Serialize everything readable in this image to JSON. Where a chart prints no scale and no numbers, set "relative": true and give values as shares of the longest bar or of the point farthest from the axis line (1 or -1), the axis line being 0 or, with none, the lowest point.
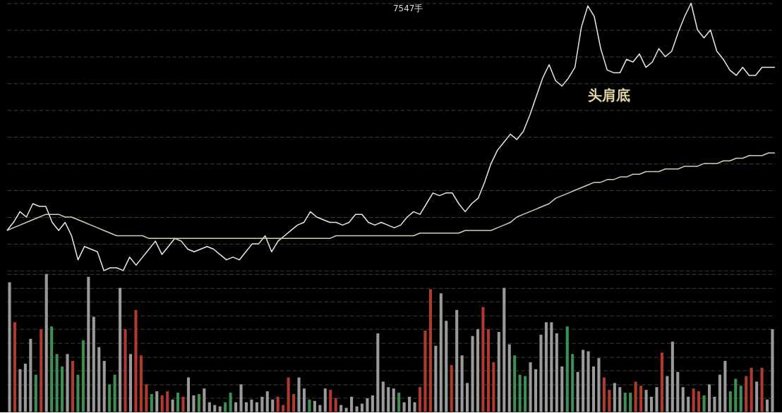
{
  "chart_data": [
    {
      "type": "line",
      "relative": true,
      "grid": "y",
      "categories": [
        null,
        null,
        null,
        null,
        null,
        null,
        null,
        null,
        null,
        null,
        null,
        null,
        null,
        null,
        null,
        null,
        null,
        null,
        null,
        null,
        null,
        null,
        null,
        null,
        null,
        null,
        null,
        null,
        null,
        null,
        null,
        null,
        null,
        null,
        null,
        null,
        null,
        null,
        null,
        null,
        null,
        null,
        null,
        null,
        null,
        null,
        null,
        null,
        null,
        null,
        null,
        null,
        null,
        null,
        null,
        null,
        null,
        null,
        null,
        null,
        null,
        null,
        null,
        null,
        null,
        null,
        null,
        null,
        null,
        null,
        null,
        null,
        null,
        null,
        null,
        null,
        null,
        null,
        null,
        null,
        null,
        null,
        null,
        null,
        null,
        null,
        null,
        null,
        null,
        null,
        null,
        null,
        null,
        null,
        null,
        null,
        null,
        null,
        null,
        null,
        null,
        null,
        null,
        null,
        null,
        null,
        null,
        null,
        null,
        null,
        null,
        null,
        null,
        null,
        null,
        null,
        null,
        null,
        null,
        null
      ],
      "annotations": [
        "7547手",
        "头肩底"
      ],
      "series": [
        {
          "color": "#e8e8e8",
          "values": [
            0.15,
            0.18,
            0.22,
            0.2,
            0.25,
            0.24,
            0.24,
            0.18,
            0.15,
            0.18,
            0.13,
            0.04,
            0.09,
            0.08,
            0.07,
            0.0,
            0.01,
            0.01,
            0.0,
            0.05,
            0.02,
            0.05,
            0.08,
            0.11,
            0.06,
            0.09,
            0.12,
            0.11,
            0.08,
            0.07,
            0.08,
            0.09,
            0.08,
            0.06,
            0.04,
            0.05,
            0.04,
            0.07,
            0.1,
            0.1,
            0.13,
            0.07,
            0.11,
            0.13,
            0.15,
            0.17,
            0.18,
            0.22,
            0.2,
            0.19,
            0.18,
            0.18,
            0.17,
            0.18,
            0.21,
            0.21,
            0.18,
            0.17,
            0.18,
            0.17,
            0.16,
            0.17,
            0.2,
            0.22,
            0.21,
            0.25,
            0.29,
            0.28,
            0.29,
            0.29,
            0.25,
            0.22,
            0.25,
            0.27,
            0.33,
            0.4,
            0.45,
            0.48,
            0.51,
            0.49,
            0.52,
            0.58,
            0.65,
            0.72,
            0.77,
            0.71,
            0.69,
            0.72,
            0.76,
            0.91,
            0.99,
            0.95,
            0.83,
            0.75,
            0.74,
            0.74,
            0.79,
            0.78,
            0.81,
            0.76,
            0.78,
            0.83,
            0.8,
            0.82,
            0.89,
            0.95,
            1.0,
            0.9,
            0.87,
            0.9,
            0.82,
            0.79,
            0.75,
            0.73,
            0.76,
            0.73,
            0.73,
            0.76,
            0.76,
            0.76
          ]
        },
        {
          "color": "#d9cdb8",
          "values": [
            0.15,
            0.16,
            0.17,
            0.18,
            0.19,
            0.2,
            0.21,
            0.21,
            0.21,
            0.2,
            0.2,
            0.19,
            0.18,
            0.17,
            0.16,
            0.15,
            0.14,
            0.13,
            0.13,
            0.13,
            0.13,
            0.13,
            0.12,
            0.12,
            0.12,
            0.12,
            0.12,
            0.12,
            0.12,
            0.12,
            0.12,
            0.12,
            0.12,
            0.12,
            0.12,
            0.12,
            0.12,
            0.12,
            0.12,
            0.12,
            0.12,
            0.12,
            0.12,
            0.12,
            0.12,
            0.12,
            0.12,
            0.12,
            0.12,
            0.12,
            0.12,
            0.13,
            0.13,
            0.13,
            0.13,
            0.13,
            0.13,
            0.13,
            0.13,
            0.13,
            0.13,
            0.13,
            0.13,
            0.13,
            0.14,
            0.14,
            0.14,
            0.14,
            0.14,
            0.14,
            0.14,
            0.15,
            0.15,
            0.15,
            0.15,
            0.15,
            0.16,
            0.17,
            0.18,
            0.2,
            0.21,
            0.22,
            0.23,
            0.24,
            0.25,
            0.27,
            0.28,
            0.29,
            0.3,
            0.31,
            0.32,
            0.33,
            0.33,
            0.34,
            0.34,
            0.35,
            0.35,
            0.36,
            0.36,
            0.37,
            0.37,
            0.37,
            0.38,
            0.38,
            0.38,
            0.39,
            0.39,
            0.39,
            0.4,
            0.4,
            0.4,
            0.41,
            0.41,
            0.42,
            0.42,
            0.43,
            0.43,
            0.43,
            0.44,
            0.44
          ]
        }
      ]
    },
    {
      "type": "bar",
      "relative": true,
      "grid": "y",
      "categories": [
        null,
        null,
        null,
        null,
        null,
        null,
        null,
        null,
        null,
        null,
        null,
        null,
        null,
        null,
        null,
        null,
        null,
        null,
        null,
        null,
        null,
        null,
        null,
        null,
        null,
        null,
        null,
        null,
        null,
        null,
        null,
        null,
        null,
        null,
        null,
        null,
        null,
        null,
        null,
        null,
        null,
        null,
        null,
        null,
        null,
        null,
        null,
        null,
        null,
        null,
        null,
        null,
        null,
        null,
        null,
        null,
        null,
        null,
        null,
        null,
        null,
        null,
        null,
        null,
        null,
        null,
        null,
        null,
        null,
        null,
        null,
        null,
        null,
        null,
        null,
        null,
        null,
        null,
        null,
        null,
        null,
        null,
        null,
        null,
        null,
        null,
        null,
        null,
        null,
        null,
        null,
        null,
        null,
        null,
        null,
        null,
        null,
        null,
        null,
        null,
        null,
        null,
        null,
        null,
        null,
        null,
        null,
        null,
        null,
        null,
        null,
        null,
        null,
        null,
        null,
        null,
        null,
        null,
        null,
        null,
        null,
        null,
        null,
        null,
        null,
        null,
        null,
        null,
        null,
        null,
        null,
        null,
        null,
        null,
        null,
        null,
        null,
        null,
        null,
        null,
        null,
        null,
        null,
        null,
        null,
        null
      ],
      "values": [
        0.94,
        0.65,
        0.31,
        0.35,
        0.53,
        0.27,
        0.6,
        1.0,
        0.62,
        0.42,
        0.33,
        0.42,
        0.37,
        0.27,
        0.52,
        0.98,
        0.69,
        0.47,
        0.37,
        0.2,
        0.27,
        0.9,
        0.6,
        0.42,
        0.74,
        0.41,
        0.2,
        0.13,
        0.15,
        0.12,
        0.15,
        0.09,
        0.14,
        0.11,
        0.25,
        0.12,
        0.13,
        0.17,
        0.07,
        0.05,
        0.04,
        0.07,
        0.14,
        0.07,
        0.2,
        0.07,
        0.09,
        0.07,
        0.11,
        0.15,
        0.09,
        0.11,
        0.05,
        0.25,
        0.13,
        0.25,
        0.17,
        0.09,
        0.08,
        0.05,
        0.17,
        0.16,
        0.1,
        0.05,
        0.03,
        0.11,
        0.04,
        0.06,
        0.1,
        0.12,
        0.57,
        0.22,
        0.18,
        0.17,
        0.14,
        0.07,
        0.11,
        0.07,
        0.18,
        0.59,
        0.89,
        0.48,
        0.86,
        0.66,
        0.34,
        0.74,
        0.41,
        0.21,
        0.55,
        0.6,
        0.76,
        0.6,
        0.36,
        0.58,
        0.9,
        0.49,
        0.41,
        0.27,
        0.26,
        0.36,
        0.31,
        0.56,
        0.65,
        0.65,
        0.57,
        0.33,
        0.62,
        0.42,
        0.29,
        0.45,
        0.44,
        0.33,
        0.39,
        0.25,
        0.16,
        0.21,
        0.18,
        0.14,
        0.14,
        0.22,
        0.19,
        0.16,
        0.11,
        0.18,
        0.43,
        0.26,
        0.51,
        0.29,
        0.18,
        0.11,
        0.17,
        0.15,
        0.12,
        0.2,
        0.11,
        0.27,
        0.37,
        0.15,
        0.24,
        0.19,
        0.26,
        0.32,
        0.22,
        0.32,
        0.09,
        0.6
      ],
      "colors": [
        "#9a9a9a",
        "#b03a2e",
        "#9a9a9a",
        "#9a9a9a",
        "#9a9a9a",
        "#3f8f55",
        "#b03a2e",
        "#9a9a9a",
        "#3f8f55",
        "#3f8f55",
        "#3f8f55",
        "#9a9a9a",
        "#b03a2e",
        "#3f8f55",
        "#3f8f55",
        "#9a9a9a",
        "#9a9a9a",
        "#9a9a9a",
        "#9a9a9a",
        "#3f8f55",
        "#3f8f55",
        "#9a9a9a",
        "#b03a2e",
        "#9a9a9a",
        "#b03a2e",
        "#b03a2e",
        "#b03a2e",
        "#3f8f55",
        "#9a9a9a",
        "#b03a2e",
        "#b03a2e",
        "#9a9a9a",
        "#3f8f55",
        "#b03a2e",
        "#9a9a9a",
        "#9a9a9a",
        "#3f8f55",
        "#9a9a9a",
        "#9a9a9a",
        "#9a9a9a",
        "#9a9a9a",
        "#3f8f55",
        "#3f8f55",
        "#9a9a9a",
        "#9a9a9a",
        "#9a9a9a",
        "#9a9a9a",
        "#9a9a9a",
        "#9a9a9a",
        "#9a9a9a",
        "#9a9a9a",
        "#b03a2e",
        "#b03a2e",
        "#b03a2e",
        "#b03a2e",
        "#9a9a9a",
        "#9a9a9a",
        "#3f8f55",
        "#9a9a9a",
        "#9a9a9a",
        "#9a9a9a",
        "#b03a2e",
        "#b03a2e",
        "#9a9a9a",
        "#9a9a9a",
        "#9a9a9a",
        "#9a9a9a",
        "#9a9a9a",
        "#9a9a9a",
        "#9a9a9a",
        "#9a9a9a",
        "#9a9a9a",
        "#9a9a9a",
        "#9a9a9a",
        "#3f8f55",
        "#9a9a9a",
        "#9a9a9a",
        "#9a9a9a",
        "#b03a2e",
        "#b03a2e",
        "#b03a2e",
        "#9a9a9a",
        "#9a9a9a",
        "#9a9a9a",
        "#b03a2e",
        "#9a9a9a",
        "#9a9a9a",
        "#9a9a9a",
        "#9a9a9a",
        "#9a9a9a",
        "#b03a2e",
        "#b03a2e",
        "#b03a2e",
        "#9a9a9a",
        "#9a9a9a",
        "#9a9a9a",
        "#3f8f55",
        "#3f8f55",
        "#3f8f55",
        "#9a9a9a",
        "#9a9a9a",
        "#9a9a9a",
        "#9a9a9a",
        "#9a9a9a",
        "#9a9a9a",
        "#9a9a9a",
        "#3f8f55",
        "#3f8f55",
        "#9a9a9a",
        "#9a9a9a",
        "#9a9a9a",
        "#9a9a9a",
        "#9a9a9a",
        "#b03a2e",
        "#b03a2e",
        "#9a9a9a",
        "#9a9a9a",
        "#3f8f55",
        "#3f8f55",
        "#b03a2e",
        "#b03a2e",
        "#9a9a9a",
        "#9a9a9a",
        "#9a9a9a",
        "#b03a2e",
        "#9a9a9a",
        "#9a9a9a",
        "#9a9a9a",
        "#9a9a9a",
        "#9a9a9a",
        "#b03a2e",
        "#b03a2e",
        "#3f8f55",
        "#9a9a9a",
        "#9a9a9a",
        "#9a9a9a",
        "#9a9a9a",
        "#3f8f55",
        "#3f8f55",
        "#3f8f55",
        "#b03a2e",
        "#b03a2e",
        "#9a9a9a",
        "#b03a2e",
        "#9a9a9a",
        "#9a9a9a"
      ]
    }
  ]
}
